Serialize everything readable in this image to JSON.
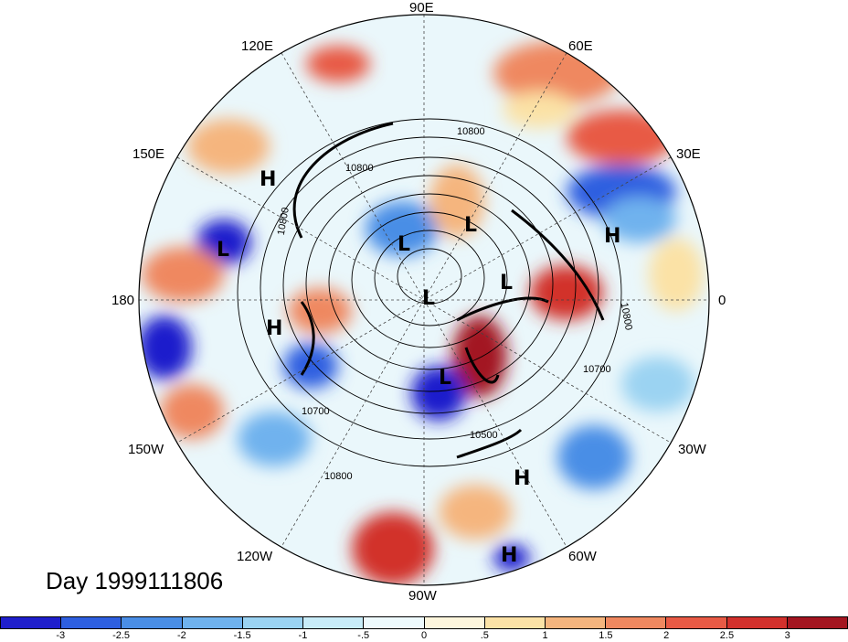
{
  "map": {
    "projection": "north-polar-stereographic",
    "field_shading": "anomaly",
    "contour_field": "height",
    "longitude_labels": [
      {
        "text": "90E",
        "lon": 90
      },
      {
        "text": "60E",
        "lon": 60
      },
      {
        "text": "30E",
        "lon": 30
      },
      {
        "text": "0",
        "lon": 0
      },
      {
        "text": "30W",
        "lon": -30
      },
      {
        "text": "60W",
        "lon": -60
      },
      {
        "text": "90W",
        "lon": -90
      },
      {
        "text": "120W",
        "lon": -120
      },
      {
        "text": "150W",
        "lon": -150
      },
      {
        "text": "180",
        "lon": 180
      },
      {
        "text": "150E",
        "lon": 150
      },
      {
        "text": "120E",
        "lon": 120
      }
    ],
    "contour_labels": [
      "10800",
      "10700",
      "10800",
      "10800",
      "10700",
      "10800",
      "10800",
      "10500"
    ],
    "pressure_centers": [
      {
        "type": "H",
        "text": "H"
      },
      {
        "type": "L",
        "text": "L"
      },
      {
        "type": "L",
        "text": "L"
      },
      {
        "type": "L",
        "text": "L"
      },
      {
        "type": "H",
        "text": "H"
      },
      {
        "type": "L",
        "text": "L"
      },
      {
        "type": "L",
        "text": "L"
      },
      {
        "type": "H",
        "text": "H"
      },
      {
        "type": "L",
        "text": "L"
      },
      {
        "type": "H",
        "text": "H"
      },
      {
        "type": "H",
        "text": "H"
      }
    ]
  },
  "title": "Day 1999111806",
  "colorbar": {
    "colors": [
      "#1f1fcc",
      "#2e5fe0",
      "#4a8ee6",
      "#6fb2ee",
      "#9bd3f2",
      "#c8ecf8",
      "#eefafd",
      "#fdf6dd",
      "#fbe2a6",
      "#f5b57e",
      "#ef8860",
      "#e85a45",
      "#d2302c",
      "#a31520"
    ],
    "tick_labels": [
      "-3",
      "-2.5",
      "-2",
      "-1.5",
      "-1",
      "-.5",
      "0",
      ".5",
      "1",
      "1.5",
      "2",
      "2.5",
      "3"
    ]
  }
}
